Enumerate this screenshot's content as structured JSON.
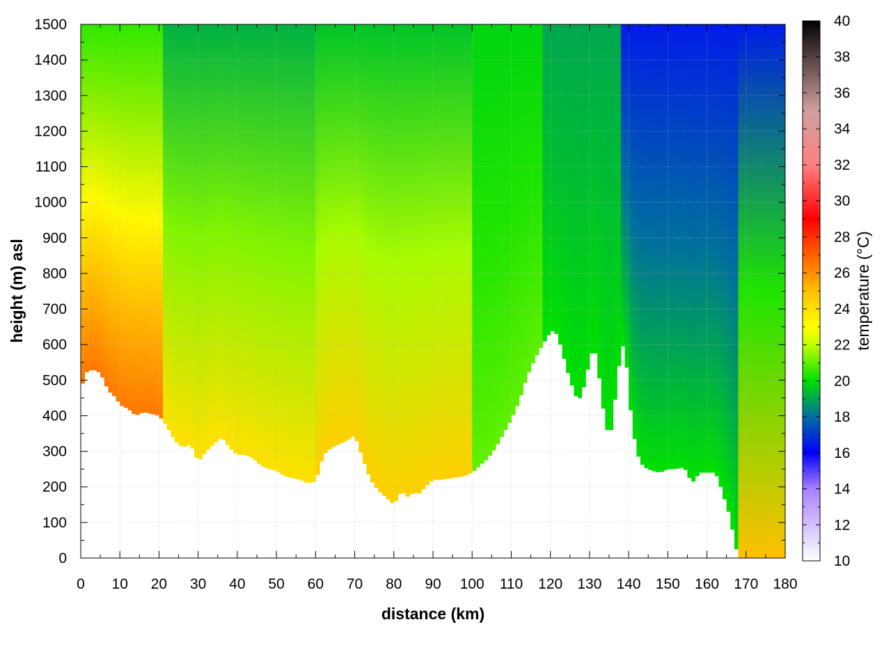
{
  "chart_data": {
    "type": "heatmap",
    "title": "",
    "xlabel": "distance (km)",
    "ylabel": "height (m) asl",
    "colorbar_label": "temperature (°C)",
    "xlim": [
      0,
      180
    ],
    "ylim": [
      0,
      1500
    ],
    "clim": [
      10,
      40
    ],
    "grid": true,
    "x_ticks": [
      "0",
      "10",
      "20",
      "30",
      "40",
      "50",
      "60",
      "70",
      "80",
      "90",
      "100",
      "110",
      "120",
      "130",
      "140",
      "150",
      "160",
      "170",
      "180"
    ],
    "y_ticks": [
      "0",
      "100",
      "200",
      "300",
      "400",
      "500",
      "600",
      "700",
      "800",
      "900",
      "1000",
      "1100",
      "1200",
      "1300",
      "1400",
      "1500"
    ],
    "colorbar_ticks": [
      "10",
      "12",
      "14",
      "16",
      "18",
      "20",
      "22",
      "24",
      "26",
      "28",
      "30",
      "32",
      "34",
      "36",
      "38",
      "40"
    ],
    "colormap": [
      {
        "t": 10,
        "color": "#ffffff"
      },
      {
        "t": 14,
        "color": "#a880ff"
      },
      {
        "t": 16,
        "color": "#0000ff"
      },
      {
        "t": 18,
        "color": "#006ea0"
      },
      {
        "t": 20,
        "color": "#00e000"
      },
      {
        "t": 22,
        "color": "#c0ff00"
      },
      {
        "t": 23,
        "color": "#ffff00"
      },
      {
        "t": 25,
        "color": "#ffc000"
      },
      {
        "t": 27,
        "color": "#ff6000"
      },
      {
        "t": 29,
        "color": "#ff0000"
      },
      {
        "t": 32,
        "color": "#ff8080"
      },
      {
        "t": 35,
        "color": "#d0a0a0"
      },
      {
        "t": 37,
        "color": "#806060"
      },
      {
        "t": 40,
        "color": "#000000"
      }
    ],
    "terrain_km": [
      0,
      1,
      3,
      5,
      7,
      9,
      10,
      12,
      14,
      16,
      18,
      20,
      22,
      24,
      26,
      28,
      30,
      32,
      34,
      36,
      38,
      40,
      42,
      44,
      46,
      48,
      50,
      52,
      54,
      56,
      58,
      60,
      62,
      64,
      66,
      68,
      70,
      72,
      74,
      76,
      78,
      80,
      82,
      83,
      84,
      85,
      86,
      88,
      90,
      92,
      95,
      98,
      100,
      102,
      104,
      106,
      108,
      110,
      112,
      114,
      116,
      118,
      120,
      121,
      122,
      124,
      125,
      126,
      127,
      128,
      129,
      130,
      131,
      132,
      133,
      134,
      135,
      136,
      137,
      138,
      139,
      140,
      141,
      142,
      143,
      144,
      145,
      146,
      148,
      150,
      152,
      154,
      155,
      156,
      157,
      158,
      160,
      162,
      163,
      164,
      165,
      166,
      167,
      168,
      170,
      175,
      180
    ],
    "terrain_m": [
      460,
      520,
      530,
      520,
      470,
      450,
      430,
      420,
      400,
      410,
      405,
      400,
      370,
      330,
      310,
      320,
      270,
      300,
      320,
      340,
      310,
      290,
      290,
      280,
      260,
      250,
      245,
      230,
      225,
      220,
      210,
      215,
      290,
      310,
      320,
      330,
      345,
      280,
      220,
      190,
      170,
      150,
      190,
      175,
      170,
      190,
      175,
      200,
      220,
      220,
      225,
      230,
      240,
      260,
      280,
      310,
      350,
      390,
      440,
      510,
      560,
      600,
      635,
      640,
      620,
      540,
      500,
      470,
      440,
      460,
      500,
      560,
      590,
      560,
      450,
      390,
      330,
      390,
      500,
      580,
      610,
      460,
      370,
      300,
      270,
      255,
      250,
      245,
      240,
      250,
      250,
      255,
      240,
      210,
      220,
      240,
      240,
      240,
      220,
      180,
      150,
      110,
      50,
      0,
      0,
      0,
      0
    ],
    "regions": [
      {
        "from_km": 0,
        "to_km": 21,
        "surface_temp": 26.5,
        "top_temp": 20.5
      },
      {
        "from_km": 21,
        "to_km": 60,
        "surface_temp": 24.0,
        "top_temp": 19.2
      },
      {
        "from_km": 60,
        "to_km": 100,
        "surface_temp": 24.5,
        "top_temp": 19.5
      },
      {
        "from_km": 100,
        "to_km": 118,
        "surface_temp": 21.0,
        "top_temp": 19.8
      },
      {
        "from_km": 118,
        "to_km": 138,
        "surface_temp": 20.0,
        "top_temp": 19.0
      },
      {
        "from_km": 138,
        "to_km": 168,
        "surface_temp": 20.0,
        "top_temp": 16.5
      },
      {
        "from_km": 168,
        "to_km": 180,
        "surface_temp": 25.0,
        "top_temp": 16.5
      }
    ]
  }
}
